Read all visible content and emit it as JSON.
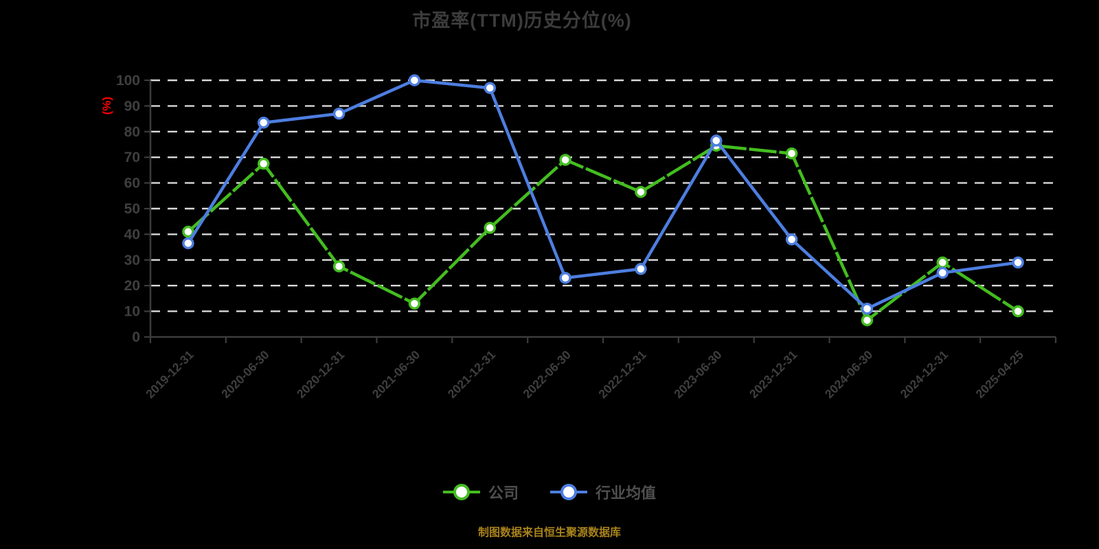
{
  "title": "市盈率(TTM)历史分位(%)",
  "y_axis_unit_label": "(%)",
  "footer_note": "制图数据来自恒生聚源数据库",
  "legend": {
    "items": [
      {
        "label": "公司"
      },
      {
        "label": "行业均值"
      }
    ]
  },
  "colors": {
    "background": "#000000",
    "title_text": "#3c3c3c",
    "axis_line": "#3c3c3c",
    "tick_label": "#3f3f3f",
    "grid_line": "#d9d9d9",
    "company_line": "#44bd20",
    "industry_line": "#4d7ee0",
    "marker_fill": "#ffffff",
    "legend_text": "#4f4f4f",
    "unit_label": "#fe0000",
    "footer_text": "#a9831b"
  },
  "chart_data": {
    "type": "line",
    "title": "市盈率(TTM)历史分位(%)",
    "xlabel": "",
    "ylabel": "(%)",
    "ylim": [
      0,
      100
    ],
    "y_ticks": [
      0,
      10,
      20,
      30,
      40,
      50,
      60,
      70,
      80,
      90,
      100
    ],
    "grid": "horizontal-dashed-white",
    "legend_position": "bottom",
    "categories": [
      "2019-12-31",
      "2020-06-30",
      "2020-12-31",
      "2021-06-30",
      "2021-12-31",
      "2022-06-30",
      "2022-12-31",
      "2023-06-30",
      "2023-12-31",
      "2024-06-30",
      "2024-12-31",
      "2025-04-25"
    ],
    "series": [
      {
        "name": "公司",
        "color": "#44bd20",
        "values": [
          41,
          67.5,
          27.5,
          13,
          42.5,
          69,
          56.5,
          74.5,
          71.5,
          6.5,
          29,
          10
        ]
      },
      {
        "name": "行业均值",
        "color": "#4d7ee0",
        "values": [
          36.5,
          83.5,
          87,
          100,
          97,
          23,
          26.5,
          76.5,
          38,
          11,
          25,
          29
        ]
      }
    ]
  }
}
